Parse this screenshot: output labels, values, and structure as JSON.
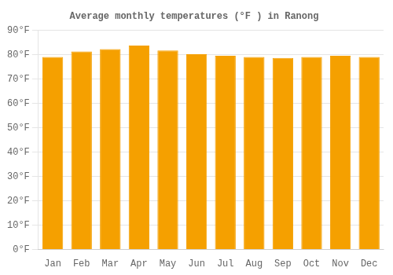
{
  "chart_data": {
    "type": "bar",
    "title": "Average monthly temperatures (°F ) in Ranong",
    "categories": [
      "Jan",
      "Feb",
      "Mar",
      "Apr",
      "May",
      "Jun",
      "Jul",
      "Aug",
      "Sep",
      "Oct",
      "Nov",
      "Dec"
    ],
    "values": [
      79.0,
      81.3,
      82.2,
      83.7,
      81.7,
      80.1,
      79.5,
      79.0,
      78.6,
      79.0,
      79.5,
      79.0
    ],
    "color": "#F5A000",
    "ylim": [
      0,
      90
    ],
    "yticks": [
      {
        "value": 0,
        "label": "0°F"
      },
      {
        "value": 10,
        "label": "10°F"
      },
      {
        "value": 20,
        "label": "20°F"
      },
      {
        "value": 30,
        "label": "30°F"
      },
      {
        "value": 40,
        "label": "40°F"
      },
      {
        "value": 50,
        "label": "50°F"
      },
      {
        "value": 60,
        "label": "60°F"
      },
      {
        "value": 70,
        "label": "70°F"
      },
      {
        "value": 80,
        "label": "80°F"
      },
      {
        "value": 90,
        "label": "90°F"
      }
    ],
    "grid": true
  }
}
